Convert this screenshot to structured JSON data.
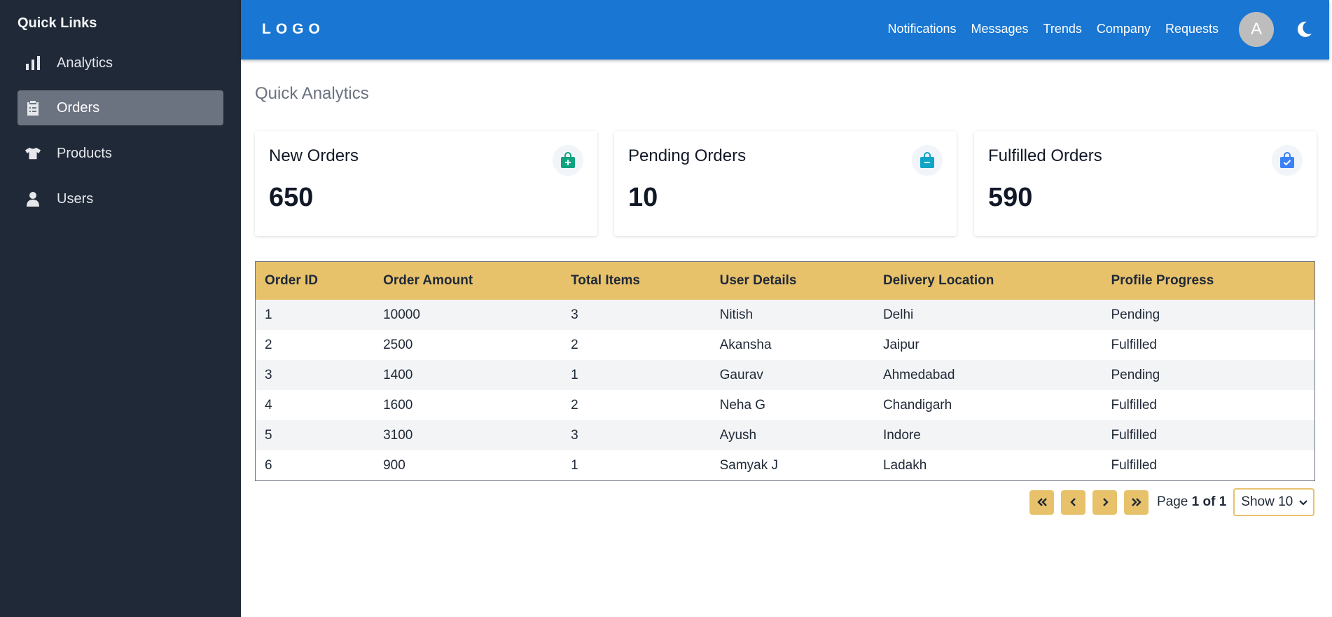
{
  "sidebar": {
    "title": "Quick Links",
    "items": [
      {
        "label": "Analytics",
        "icon": "bar-chart-icon"
      },
      {
        "label": "Orders",
        "icon": "clipboard-icon",
        "active": true
      },
      {
        "label": "Products",
        "icon": "shirt-icon"
      },
      {
        "label": "Users",
        "icon": "user-icon"
      }
    ]
  },
  "header": {
    "logo": "LOGO",
    "nav": [
      "Notifications",
      "Messages",
      "Trends",
      "Company",
      "Requests"
    ],
    "avatar_letter": "A",
    "theme_icon": "moon-icon"
  },
  "main": {
    "title": "Quick Analytics",
    "cards": [
      {
        "title": "New Orders",
        "value": "650",
        "icon": "bag-plus-icon",
        "icon_color": "#10a37f"
      },
      {
        "title": "Pending Orders",
        "value": "10",
        "icon": "bag-dash-icon",
        "icon_color": "#0ea5c6"
      },
      {
        "title": "Fulfilled Orders",
        "value": "590",
        "icon": "bag-check-icon",
        "icon_color": "#3b82f6"
      }
    ],
    "table": {
      "columns": [
        "Order ID",
        "Order Amount",
        "Total Items",
        "User Details",
        "Delivery Location",
        "Profile Progress"
      ],
      "rows": [
        [
          "1",
          "10000",
          "3",
          "Nitish",
          "Delhi",
          "Pending"
        ],
        [
          "2",
          "2500",
          "2",
          "Akansha",
          "Jaipur",
          "Fulfilled"
        ],
        [
          "3",
          "1400",
          "1",
          "Gaurav",
          "Ahmedabad",
          "Pending"
        ],
        [
          "4",
          "1600",
          "2",
          "Neha G",
          "Chandigarh",
          "Fulfilled"
        ],
        [
          "5",
          "3100",
          "3",
          "Ayush",
          "Indore",
          "Fulfilled"
        ],
        [
          "6",
          "900",
          "1",
          "Samyak J",
          "Ladakh",
          "Fulfilled"
        ]
      ]
    },
    "pagination": {
      "page_prefix": "Page",
      "page_value": "1 of 1",
      "show_label": "Show 10"
    }
  },
  "colors": {
    "sidebar_bg": "#1f2937",
    "header_bg": "#1976d2",
    "table_header_bg": "#e8c26b",
    "active_nav_bg": "#6b7280"
  }
}
